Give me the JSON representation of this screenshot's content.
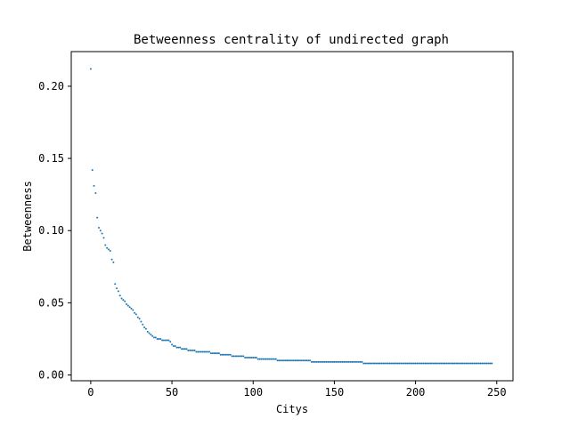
{
  "chart_data": {
    "type": "scatter",
    "title": "Betweenness centrality of undirected graph",
    "xlabel": "Citys",
    "ylabel": "Betweenness",
    "xlim": [
      -12,
      260
    ],
    "ylim": [
      -0.004,
      0.224
    ],
    "xticks": [
      0,
      50,
      100,
      150,
      200,
      250
    ],
    "xtick_labels": [
      "0",
      "50",
      "100",
      "150",
      "200",
      "250"
    ],
    "yticks": [
      0.0,
      0.05,
      0.1,
      0.15,
      0.2
    ],
    "ytick_labels": [
      "0.00",
      "0.05",
      "0.10",
      "0.15",
      "0.20"
    ],
    "grid": false,
    "color": "#1f77b4",
    "series": [
      {
        "x_start": 0,
        "y": [
          0.212,
          0.142,
          0.131,
          0.126,
          0.109,
          0.102,
          0.1,
          0.098,
          0.095,
          0.09,
          0.088,
          0.087,
          0.086,
          0.08,
          0.078,
          0.063,
          0.06,
          0.058,
          0.055,
          0.053,
          0.052,
          0.051,
          0.049,
          0.048,
          0.047,
          0.046,
          0.045,
          0.043,
          0.042,
          0.04,
          0.039,
          0.037,
          0.035,
          0.033,
          0.032,
          0.03,
          0.029,
          0.028,
          0.027,
          0.026,
          0.026,
          0.025,
          0.025,
          0.025,
          0.024,
          0.024,
          0.024,
          0.024,
          0.024,
          0.023,
          0.021,
          0.02,
          0.02,
          0.019,
          0.019,
          0.019,
          0.018,
          0.018,
          0.018,
          0.018,
          0.017,
          0.017,
          0.017,
          0.017,
          0.017,
          0.016,
          0.016,
          0.016,
          0.016,
          0.016,
          0.016,
          0.016,
          0.016,
          0.016,
          0.015,
          0.015,
          0.015,
          0.015,
          0.015,
          0.015,
          0.014,
          0.014,
          0.014,
          0.014,
          0.014,
          0.014,
          0.014,
          0.013,
          0.013,
          0.013,
          0.013,
          0.013,
          0.013,
          0.013,
          0.013,
          0.012,
          0.012,
          0.012,
          0.012,
          0.012,
          0.012,
          0.012,
          0.012,
          0.011,
          0.011,
          0.011,
          0.011,
          0.011,
          0.011,
          0.011,
          0.011,
          0.011,
          0.011,
          0.011,
          0.011,
          0.01,
          0.01,
          0.01,
          0.01,
          0.01,
          0.01,
          0.01,
          0.01,
          0.01,
          0.01,
          0.01,
          0.01,
          0.01,
          0.01,
          0.01,
          0.01,
          0.01,
          0.01,
          0.01,
          0.01,
          0.01,
          0.009,
          0.009,
          0.009,
          0.009,
          0.009,
          0.009,
          0.009,
          0.009,
          0.009,
          0.009,
          0.009,
          0.009,
          0.009,
          0.009,
          0.009,
          0.009,
          0.009,
          0.009,
          0.009,
          0.009,
          0.009,
          0.009,
          0.009,
          0.009,
          0.009,
          0.009,
          0.009,
          0.009,
          0.009,
          0.009,
          0.009,
          0.009,
          0.008,
          0.008,
          0.008,
          0.008,
          0.008,
          0.008,
          0.008,
          0.008,
          0.008,
          0.008,
          0.008,
          0.008,
          0.008,
          0.008,
          0.008,
          0.008,
          0.008,
          0.008,
          0.008,
          0.008,
          0.008,
          0.008,
          0.008,
          0.008,
          0.008,
          0.008,
          0.008,
          0.008,
          0.008,
          0.008,
          0.008,
          0.008,
          0.008,
          0.008,
          0.008,
          0.008,
          0.008,
          0.008,
          0.008,
          0.008,
          0.008,
          0.008,
          0.008,
          0.008,
          0.008,
          0.008,
          0.008,
          0.008,
          0.008,
          0.008,
          0.008,
          0.008,
          0.008,
          0.008,
          0.008,
          0.008,
          0.008,
          0.008,
          0.008,
          0.008,
          0.008,
          0.008,
          0.008,
          0.008,
          0.008,
          0.008,
          0.008,
          0.008,
          0.008,
          0.008,
          0.008,
          0.008,
          0.008,
          0.008,
          0.008,
          0.008,
          0.008,
          0.008,
          0.008,
          0.008
        ]
      }
    ]
  }
}
